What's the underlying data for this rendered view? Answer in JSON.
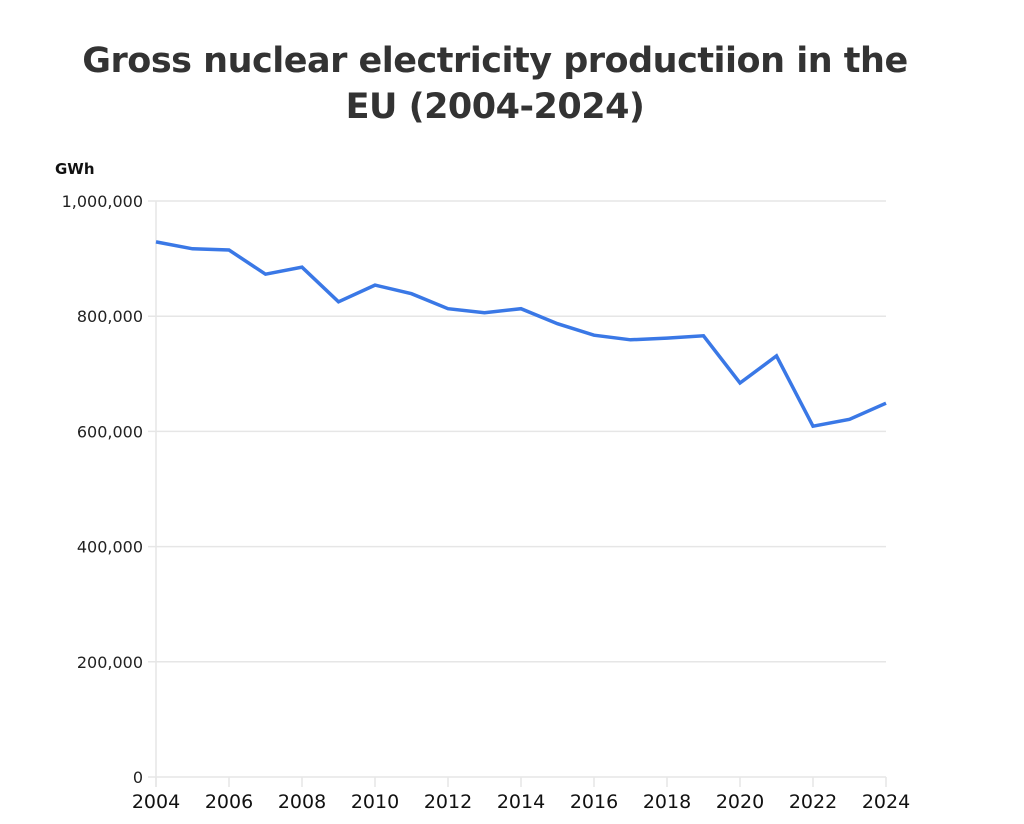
{
  "chart_data": {
    "type": "line",
    "title": "Gross nuclear electricity productiion in the EU (2004-2024)",
    "ylabel": "GWh",
    "xlabel": "",
    "xlim": [
      2004,
      2024
    ],
    "ylim": [
      0,
      1000000
    ],
    "x_ticks": [
      "2004",
      "2006",
      "2008",
      "2010",
      "2012",
      "2014",
      "2016",
      "2018",
      "2020",
      "2022",
      "2024"
    ],
    "y_ticks": [
      {
        "value": 0,
        "label": "0"
      },
      {
        "value": 200000,
        "label": "200,000"
      },
      {
        "value": 400000,
        "label": "400,000"
      },
      {
        "value": 600000,
        "label": "600,000"
      },
      {
        "value": 800000,
        "label": "800,000"
      },
      {
        "value": 1000000,
        "label": "1,000,000"
      }
    ],
    "grid": true,
    "legend": "none",
    "series": [
      {
        "name": "Gross nuclear electricity production",
        "color": "#3a78e6",
        "x": [
          2004,
          2005,
          2006,
          2007,
          2008,
          2009,
          2010,
          2011,
          2012,
          2013,
          2014,
          2015,
          2016,
          2017,
          2018,
          2019,
          2020,
          2021,
          2022,
          2023,
          2024
        ],
        "values": [
          929000,
          917000,
          915000,
          873000,
          885000,
          825000,
          854000,
          839000,
          813000,
          806000,
          813000,
          787000,
          767000,
          759000,
          762000,
          766000,
          684000,
          731000,
          609000,
          621000,
          649000
        ]
      }
    ]
  },
  "title_line1": "Gross nuclear electricity productiion in the",
  "title_line2": "EU (2004-2024)",
  "unit_label": "GWh"
}
